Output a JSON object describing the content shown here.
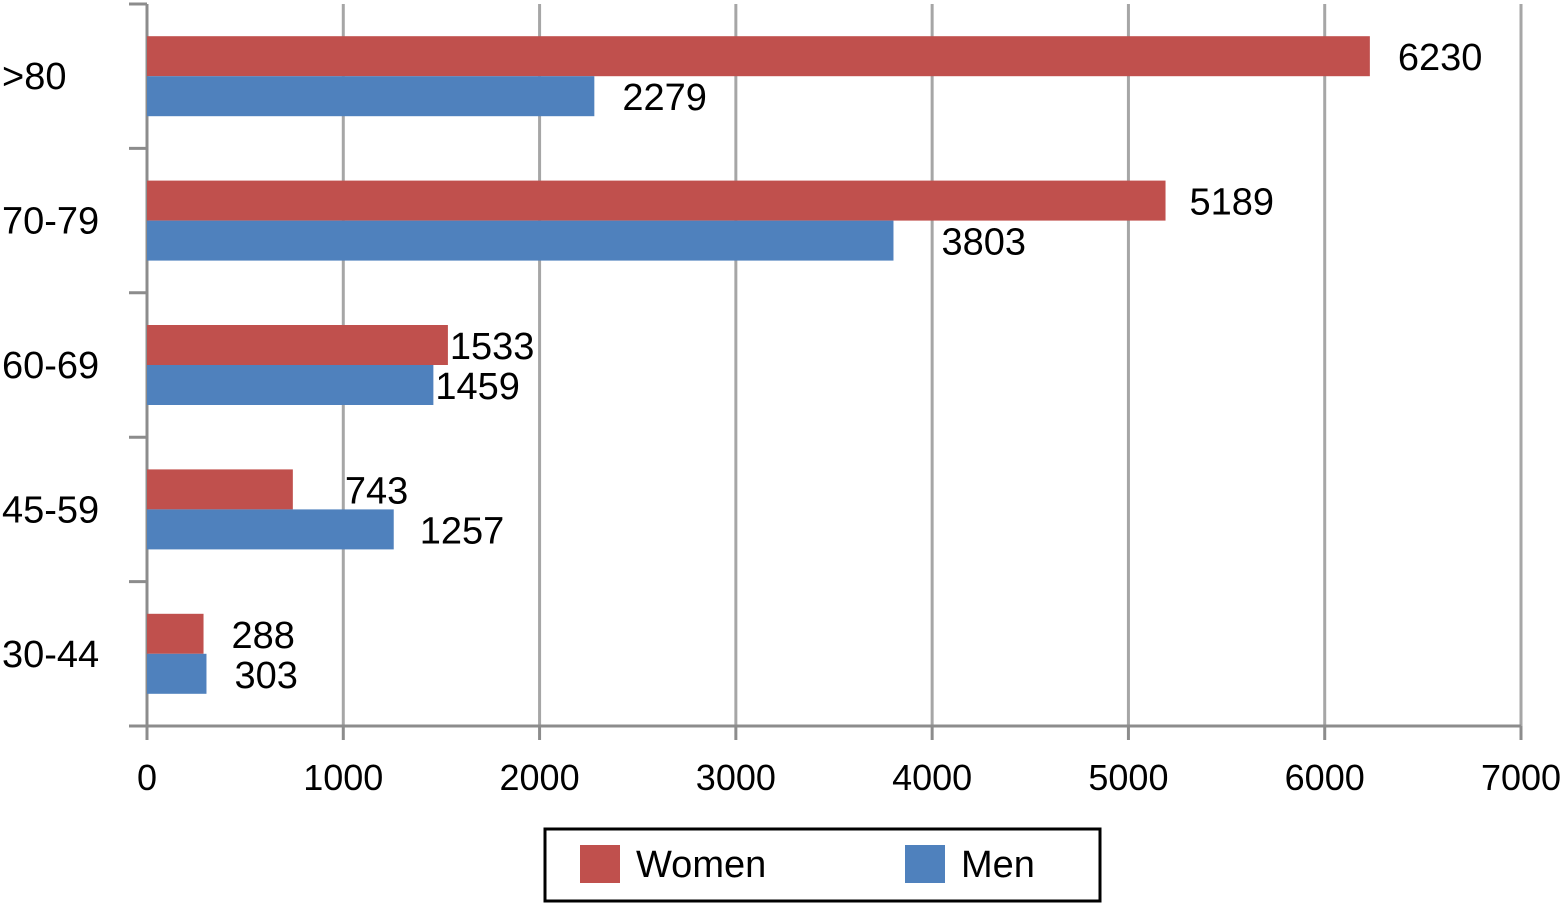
{
  "chart_data": {
    "type": "bar",
    "orientation": "horizontal",
    "categories": [
      ">80",
      "70-79",
      "60-69",
      "45-59",
      "30-44"
    ],
    "series": [
      {
        "name": "Women",
        "color": "#c0504d",
        "values": [
          6230,
          5189,
          1533,
          743,
          288
        ]
      },
      {
        "name": "Men",
        "color": "#4f81bd",
        "values": [
          2279,
          3803,
          1459,
          1257,
          303
        ]
      }
    ],
    "x_ticks": [
      "0",
      "1000",
      "2000",
      "3000",
      "4000",
      "5000",
      "6000",
      "7000"
    ],
    "xlim": [
      0,
      7000
    ],
    "grid": "vertical",
    "legend_position": "bottom",
    "data_labels": true
  }
}
